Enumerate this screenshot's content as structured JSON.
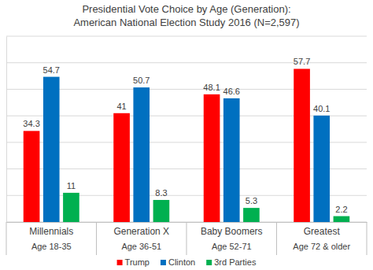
{
  "chart_data": {
    "type": "bar",
    "title": "Presidential Vote Choice by Age (Generation):\nAmerican National Election Study 2016 (N=2,597)",
    "categories": [
      "Millennials\nAge 18-35",
      "Generation X\nAge 36-51",
      "Baby Boomers\nAge 52-71",
      "Greatest\nAge 72 & older"
    ],
    "series": [
      {
        "name": "Trump",
        "color": "#ff0000",
        "values": [
          34.3,
          41,
          48.1,
          57.7
        ]
      },
      {
        "name": "Clinton",
        "color": "#0070c0",
        "values": [
          54.7,
          50.7,
          46.6,
          40.1
        ]
      },
      {
        "name": "3rd Parties",
        "color": "#00b050",
        "values": [
          11,
          8.3,
          5.3,
          2.2
        ]
      }
    ],
    "ylim": [
      0,
      70
    ],
    "yticks": [
      0,
      10,
      20,
      30,
      40,
      50,
      60,
      70
    ],
    "grid": true,
    "tick_labels": "x",
    "data_labels": true,
    "legend": "bottom"
  }
}
